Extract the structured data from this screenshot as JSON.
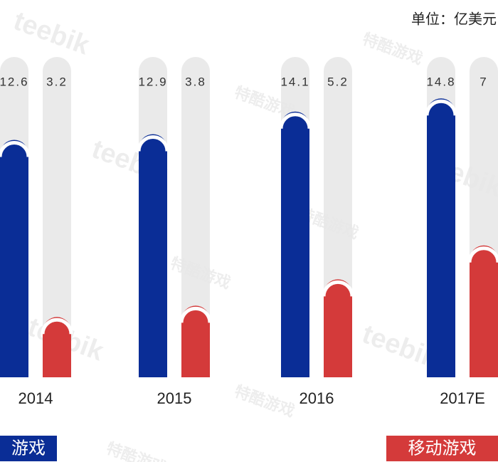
{
  "chart_data": {
    "type": "bar",
    "unit": "单位：亿美元",
    "categories": [
      "2014",
      "2015",
      "2016",
      "2017E"
    ],
    "series": [
      {
        "name": "游戏",
        "color": "#0a2d96",
        "values": [
          12.6,
          12.9,
          14.1,
          14.8
        ]
      },
      {
        "name": "移动游戏",
        "color": "#d43a3a",
        "values": [
          3.2,
          3.8,
          5.2,
          7.0
        ]
      }
    ],
    "ylim": [
      0,
      17
    ],
    "watermarks": [
      "teebik",
      "特酷游戏"
    ]
  }
}
